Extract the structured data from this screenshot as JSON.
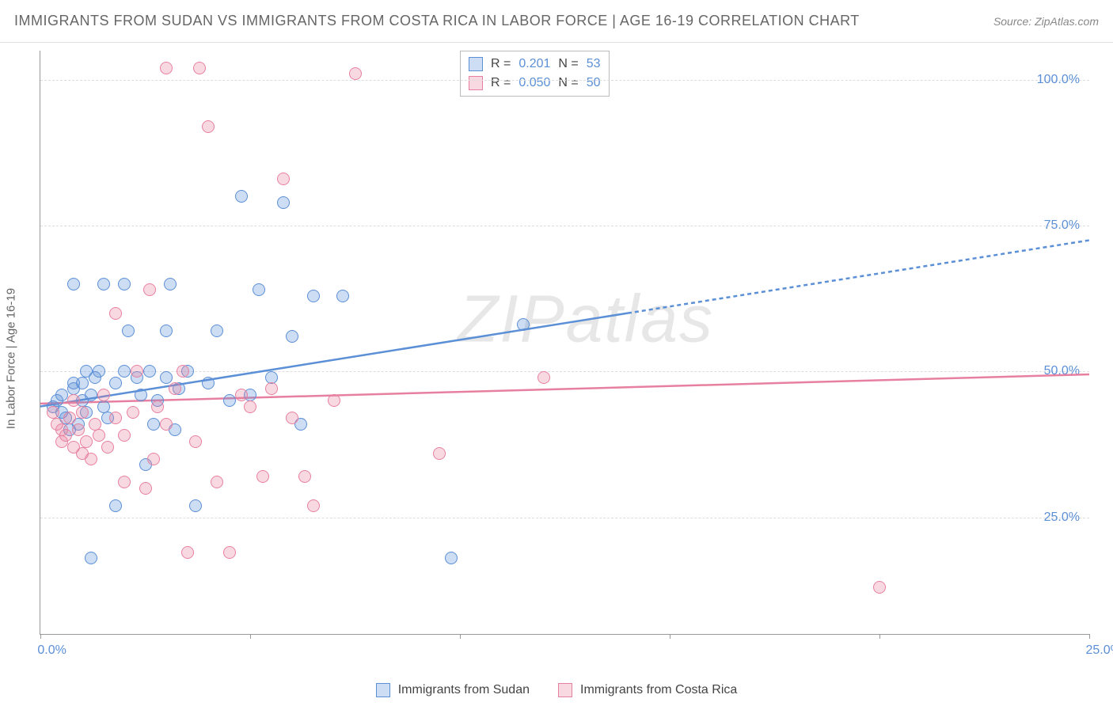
{
  "header": {
    "title": "IMMIGRANTS FROM SUDAN VS IMMIGRANTS FROM COSTA RICA IN LABOR FORCE | AGE 16-19 CORRELATION CHART",
    "source": "Source: ZipAtlas.com"
  },
  "chart": {
    "type": "scatter",
    "ylabel": "In Labor Force | Age 16-19",
    "watermark": "ZIPatlas",
    "background_color": "#ffffff",
    "grid_color": "#dddddd",
    "axis_color": "#999999",
    "tick_label_color": "#5b8fd6",
    "tick_label_fontsize": 16,
    "title_fontsize": 18,
    "title_color": "#666666",
    "xlim": [
      0,
      25
    ],
    "ylim": [
      5,
      105
    ],
    "xticks": [
      0,
      5,
      10,
      15,
      20,
      25
    ],
    "xtick_labels_shown": {
      "0": "0.0%",
      "25": "25.0%"
    },
    "yticks": [
      25,
      50,
      75,
      100
    ],
    "ytick_labels": {
      "25": "25.0%",
      "50": "50.0%",
      "75": "75.0%",
      "100": "100.0%"
    },
    "marker_size": 16,
    "marker_border_width": 1.5,
    "series": [
      {
        "id": "sudan",
        "label": "Immigrants from Sudan",
        "color": "#5b8fd6",
        "fill": "rgba(91,143,214,0.30)",
        "R": "0.201",
        "N": "53",
        "trend": {
          "x1": 0,
          "y1": 44,
          "x_solid_end": 14,
          "y_solid_end": 60,
          "x2": 25,
          "y2": 72.5,
          "line_width": 2.5,
          "dash_after_solid": true
        },
        "points": [
          [
            0.3,
            44
          ],
          [
            0.4,
            45
          ],
          [
            0.5,
            46
          ],
          [
            0.5,
            43
          ],
          [
            0.6,
            42
          ],
          [
            0.7,
            40
          ],
          [
            0.8,
            47
          ],
          [
            0.8,
            48
          ],
          [
            0.9,
            41
          ],
          [
            1.0,
            45
          ],
          [
            1.0,
            48
          ],
          [
            1.1,
            50
          ],
          [
            1.1,
            43
          ],
          [
            1.2,
            46
          ],
          [
            1.3,
            49
          ],
          [
            1.4,
            50
          ],
          [
            1.5,
            44
          ],
          [
            1.5,
            65
          ],
          [
            1.6,
            42
          ],
          [
            1.8,
            48
          ],
          [
            1.8,
            27
          ],
          [
            2.0,
            50
          ],
          [
            2.0,
            65
          ],
          [
            2.1,
            57
          ],
          [
            2.3,
            49
          ],
          [
            2.4,
            46
          ],
          [
            2.5,
            34
          ],
          [
            2.6,
            50
          ],
          [
            2.7,
            41
          ],
          [
            2.8,
            45
          ],
          [
            3.0,
            49
          ],
          [
            3.0,
            57
          ],
          [
            3.1,
            65
          ],
          [
            3.2,
            40
          ],
          [
            3.3,
            47
          ],
          [
            3.5,
            50
          ],
          [
            3.7,
            27
          ],
          [
            4.0,
            48
          ],
          [
            4.2,
            57
          ],
          [
            4.5,
            45
          ],
          [
            4.8,
            80
          ],
          [
            5.0,
            46
          ],
          [
            5.2,
            64
          ],
          [
            5.5,
            49
          ],
          [
            5.8,
            79
          ],
          [
            6.0,
            56
          ],
          [
            6.2,
            41
          ],
          [
            6.5,
            63
          ],
          [
            7.2,
            63
          ],
          [
            1.2,
            18
          ],
          [
            9.8,
            18
          ],
          [
            11.5,
            58
          ],
          [
            0.8,
            65
          ]
        ]
      },
      {
        "id": "costarica",
        "label": "Immigrants from Costa Rica",
        "color": "#e780a0",
        "fill": "rgba(231,128,160,0.30)",
        "R": "0.050",
        "N": "50",
        "trend": {
          "x1": 0,
          "y1": 44.5,
          "x_solid_end": 25,
          "y_solid_end": 49.5,
          "x2": 25,
          "y2": 49.5,
          "line_width": 2.5,
          "dash_after_solid": false
        },
        "points": [
          [
            0.3,
            43
          ],
          [
            0.4,
            41
          ],
          [
            0.5,
            40
          ],
          [
            0.5,
            38
          ],
          [
            0.6,
            39
          ],
          [
            0.7,
            42
          ],
          [
            0.8,
            37
          ],
          [
            0.8,
            45
          ],
          [
            0.9,
            40
          ],
          [
            1.0,
            36
          ],
          [
            1.0,
            43
          ],
          [
            1.1,
            38
          ],
          [
            1.2,
            35
          ],
          [
            1.3,
            41
          ],
          [
            1.4,
            39
          ],
          [
            1.5,
            46
          ],
          [
            1.6,
            37
          ],
          [
            1.8,
            42
          ],
          [
            1.8,
            60
          ],
          [
            2.0,
            39
          ],
          [
            2.0,
            31
          ],
          [
            2.2,
            43
          ],
          [
            2.3,
            50
          ],
          [
            2.5,
            30
          ],
          [
            2.6,
            64
          ],
          [
            2.7,
            35
          ],
          [
            2.8,
            44
          ],
          [
            3.0,
            41
          ],
          [
            3.0,
            102
          ],
          [
            3.2,
            47
          ],
          [
            3.4,
            50
          ],
          [
            3.5,
            19
          ],
          [
            3.7,
            38
          ],
          [
            3.8,
            102
          ],
          [
            4.0,
            92
          ],
          [
            4.2,
            31
          ],
          [
            4.5,
            19
          ],
          [
            4.8,
            46
          ],
          [
            5.0,
            44
          ],
          [
            5.3,
            32
          ],
          [
            5.5,
            47
          ],
          [
            5.8,
            83
          ],
          [
            6.0,
            42
          ],
          [
            6.3,
            32
          ],
          [
            6.5,
            27
          ],
          [
            7.0,
            45
          ],
          [
            7.5,
            101
          ],
          [
            9.5,
            36
          ],
          [
            12.0,
            49
          ],
          [
            20.0,
            13
          ]
        ]
      }
    ],
    "legend_corr": {
      "R_label": "R =",
      "N_label": "N ="
    }
  },
  "footer": {
    "series_a_label": "Immigrants from Sudan",
    "series_b_label": "Immigrants from Costa Rica"
  }
}
